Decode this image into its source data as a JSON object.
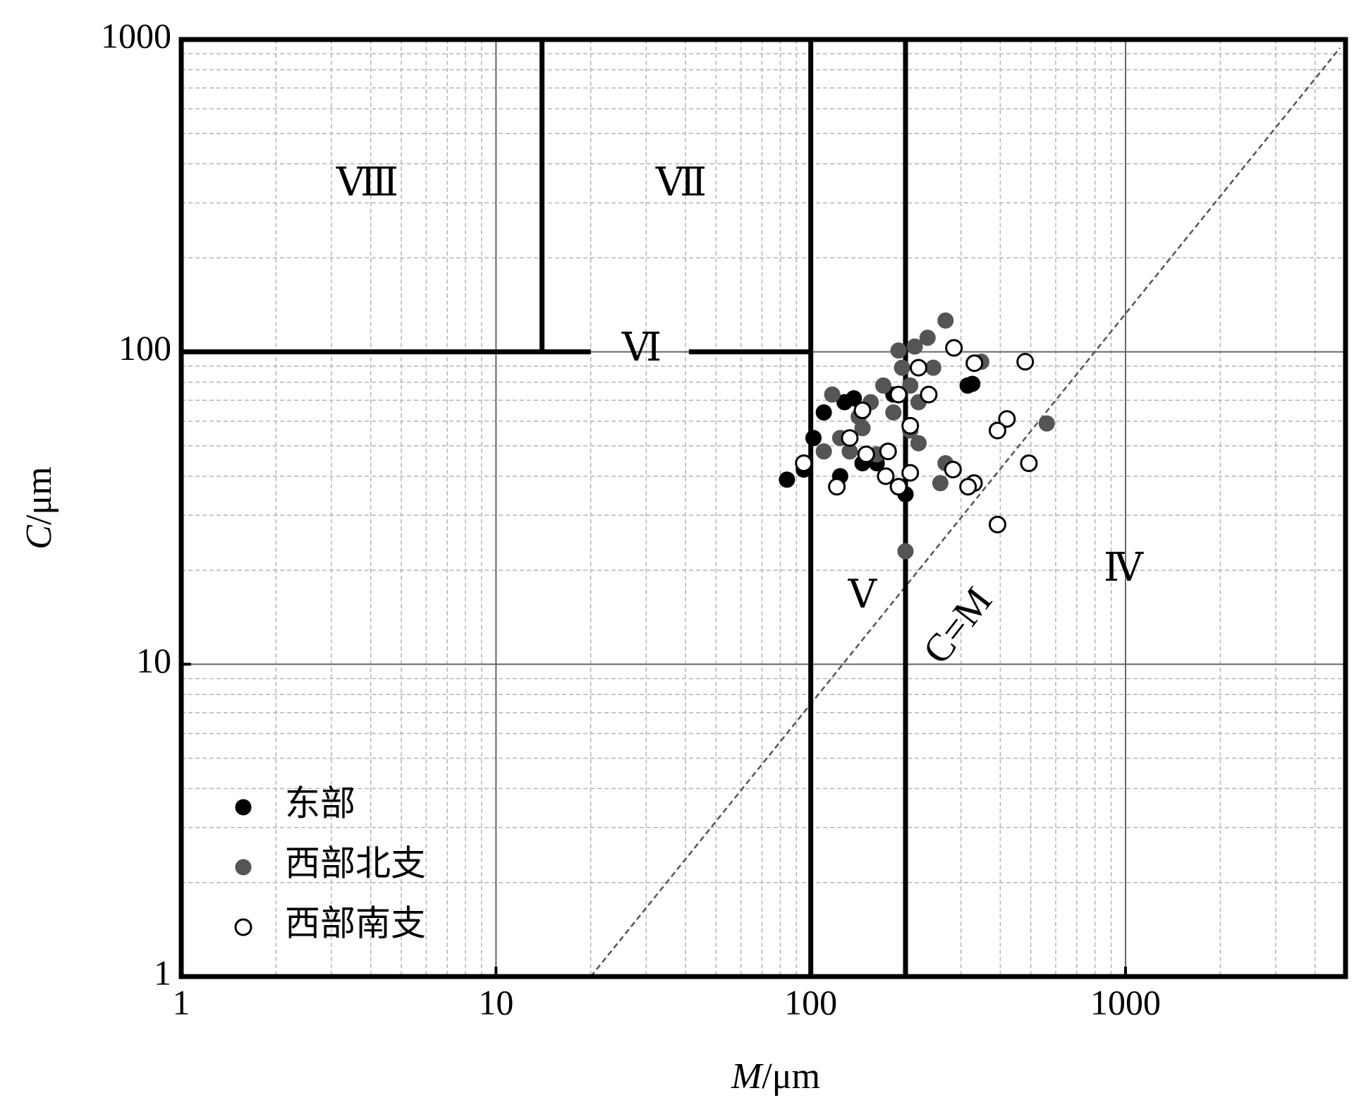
{
  "chart_data": {
    "type": "scatter",
    "x_label": {
      "var": "M",
      "unit": "/μm"
    },
    "y_label": {
      "var": "C",
      "unit": "/μm"
    },
    "log_x": true,
    "log_y": true,
    "grid": true,
    "legend": "lower left",
    "xlim": [
      1,
      5000
    ],
    "ylim": [
      1,
      1000
    ],
    "xticks": [
      1,
      10,
      100,
      1000
    ],
    "yticks": [
      1,
      10,
      100,
      1000
    ],
    "xminor": [
      2,
      3,
      4,
      5,
      6,
      7,
      8,
      9,
      20,
      30,
      40,
      50,
      60,
      70,
      80,
      90,
      200,
      300,
      400,
      500,
      600,
      700,
      800,
      900,
      2000,
      3000,
      4000
    ],
    "yminor": [
      2,
      3,
      4,
      5,
      6,
      7,
      8,
      9,
      20,
      30,
      40,
      50,
      60,
      70,
      80,
      90,
      200,
      300,
      400,
      500,
      600,
      700,
      800,
      900
    ],
    "zones": [
      "Ⅷ",
      "Ⅶ",
      "Ⅵ",
      "Ⅴ",
      "Ⅳ"
    ],
    "reference_line": {
      "label": "C=M",
      "x": [
        20,
        4800
      ],
      "y": [
        1,
        940
      ]
    },
    "boundaries": [
      {
        "x": [
          14,
          14
        ],
        "y": [
          100,
          1000
        ]
      },
      {
        "x": [
          1,
          20
        ],
        "y": [
          100,
          100
        ]
      },
      {
        "x": [
          41,
          100
        ],
        "y": [
          100,
          100
        ]
      },
      {
        "x": [
          100,
          100
        ],
        "y": [
          1,
          1000
        ]
      },
      {
        "x": [
          200,
          200
        ],
        "y": [
          1,
          1000
        ]
      }
    ],
    "series": [
      {
        "name": "东部",
        "color": "#000000",
        "marker": "filled",
        "x": [
          84,
          95,
          110,
          102,
          124,
          146,
          137,
          162,
          200,
          315,
          326,
          128,
          183
        ],
        "values": [
          39,
          42,
          64,
          53,
          40,
          44,
          71,
          44,
          35,
          78,
          79,
          69,
          73
        ]
      },
      {
        "name": "西部北支",
        "color": "#555555",
        "marker": "filled",
        "x": [
          268,
          562,
          200,
          348,
          235,
          214,
          195,
          170,
          155,
          142,
          124,
          110,
          117,
          207,
          220,
          268,
          258,
          162,
          183,
          207,
          190,
          245,
          220,
          146,
          133
        ],
        "values": [
          126,
          59,
          23,
          93,
          111,
          104,
          89,
          78,
          69,
          62,
          53,
          48,
          73,
          56,
          51,
          44,
          38,
          47,
          64,
          78,
          101,
          89,
          69,
          57,
          48
        ]
      },
      {
        "name": "西部南支",
        "color": "#000000",
        "marker": "open",
        "x": [
          285,
          331,
          480,
          420,
          392,
          493,
          392,
          330,
          316,
          283,
          237,
          220,
          190,
          207,
          190,
          173,
          150,
          146,
          133,
          121,
          95,
          207,
          176
        ],
        "values": [
          103,
          92,
          93,
          61,
          56,
          44,
          28,
          38,
          37,
          42,
          73,
          89,
          73,
          41,
          37,
          40,
          47,
          65,
          53,
          37,
          44,
          58,
          48
        ]
      }
    ]
  }
}
